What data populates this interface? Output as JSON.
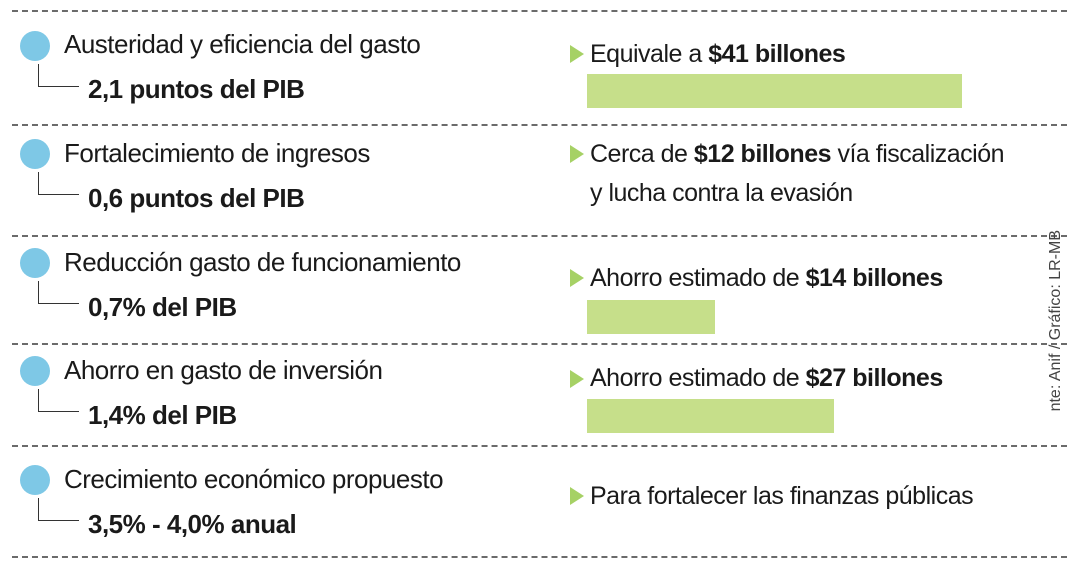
{
  "source": "nte: Anif / Gráfico: LR-MB",
  "chart_data": {
    "type": "bar",
    "rows": [
      {
        "category": "Austeridad y eficiencia del gasto",
        "measure": "2,1 puntos del PIB",
        "note_pre": "Equivale a ",
        "note_bold": "$41 billones",
        "note_post": "",
        "note_line2": "",
        "value": 41
      },
      {
        "category": "Fortalecimiento de ingresos",
        "measure": "0,6 puntos del PIB",
        "note_pre": "Cerca de ",
        "note_bold": "$12 billones",
        "note_post": " vía fiscalización",
        "note_line2": "y lucha contra la evasión",
        "value": null
      },
      {
        "category": "Reducción gasto de funcionamiento",
        "measure": "0,7% del PIB",
        "note_pre": "Ahorro estimado de ",
        "note_bold": "$14 billones",
        "note_post": "",
        "note_line2": "",
        "value": 14
      },
      {
        "category": "Ahorro en gasto de inversión",
        "measure": "1,4% del PIB",
        "note_pre": "Ahorro estimado de ",
        "note_bold": "$27 billones",
        "note_post": "",
        "note_line2": "",
        "value": 27
      },
      {
        "category": "Crecimiento económico propuesto",
        "measure": "3,5% - 4,0% anual",
        "note_pre": "Para fortalecer las finanzas públicas",
        "note_bold": "",
        "note_post": "",
        "note_line2": "",
        "value": null
      }
    ],
    "colors": {
      "dot": "#7ec8e6",
      "arrow": "#a6d165",
      "bar": "#c6df8a"
    }
  }
}
